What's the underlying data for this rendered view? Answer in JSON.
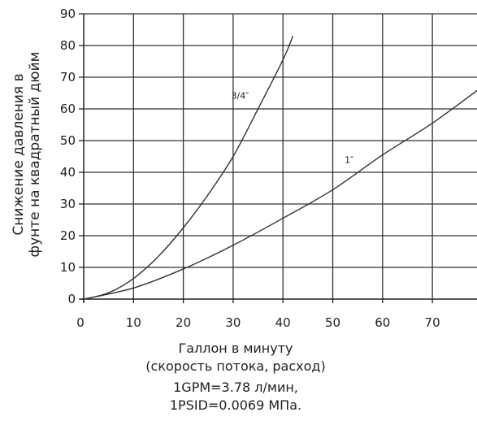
{
  "chart_data": {
    "type": "line",
    "title": "",
    "ylabel_line1": "Снижение давления в",
    "ylabel_line2": "фунте на квадратный дюйм",
    "xlabel_line1": "Галлон в минуту",
    "xlabel_line2": "(скорость потока, расход)",
    "note_line1": "1GPM=3.78 л/мин,",
    "note_line2": "1PSID=0.0069 МПа.",
    "xlim": [
      0,
      80
    ],
    "ylim": [
      0,
      90
    ],
    "x_ticks": [
      0,
      10,
      20,
      30,
      40,
      50,
      60,
      70
    ],
    "y_ticks": [
      0,
      10,
      20,
      30,
      40,
      50,
      60,
      70,
      80,
      90
    ],
    "grid": true,
    "series": [
      {
        "name": "3/4″",
        "x": [
          0,
          5,
          10,
          15,
          20,
          25,
          30,
          35,
          40,
          42
        ],
        "y": [
          0,
          2,
          6.5,
          13.5,
          22.5,
          33,
          45,
          60,
          75.5,
          83
        ]
      },
      {
        "name": "1″",
        "x": [
          0,
          10,
          20,
          30,
          40,
          50,
          60,
          70,
          80
        ],
        "y": [
          0,
          3.5,
          9.5,
          17,
          25.5,
          34.5,
          45.5,
          55.5,
          67
        ]
      }
    ]
  }
}
